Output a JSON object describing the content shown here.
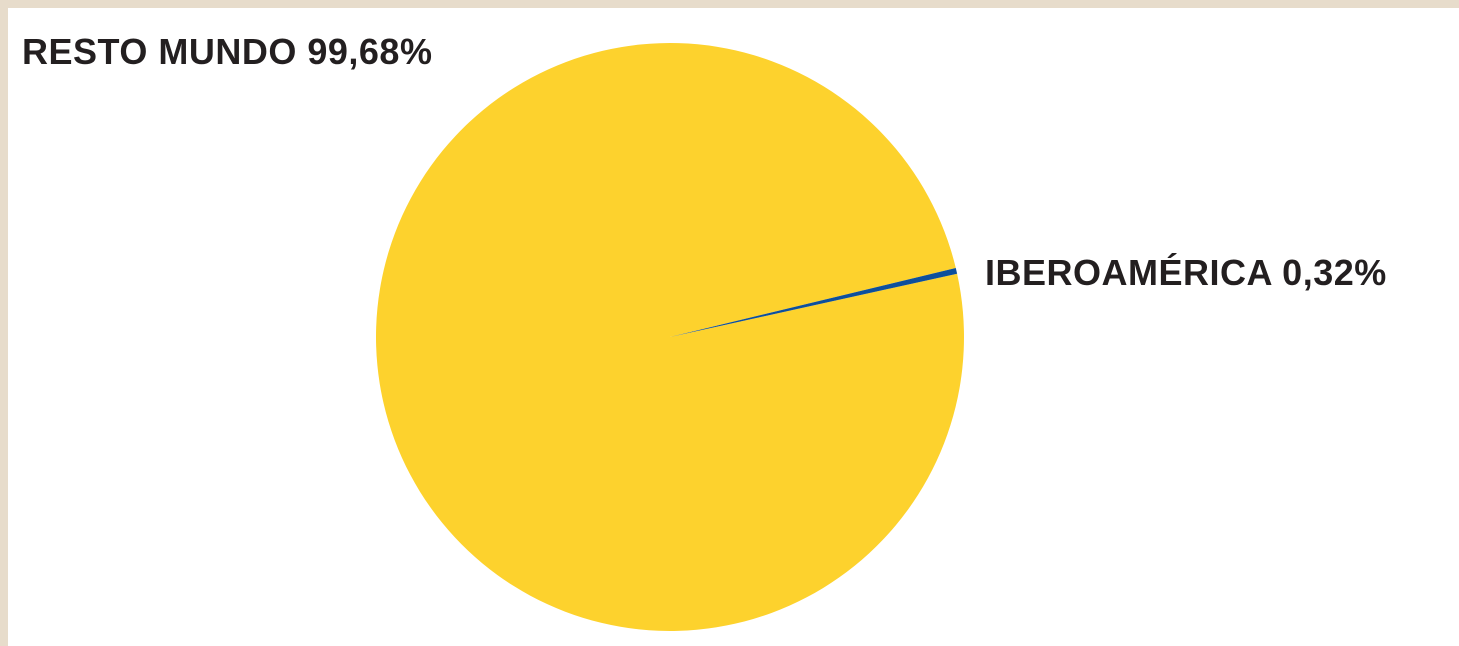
{
  "chart_data": {
    "type": "pie",
    "slices": [
      {
        "name": "RESTO MUNDO",
        "value": 99.68,
        "label": "RESTO MUNDO 99,68%",
        "color": "#fdd22d"
      },
      {
        "name": "IBEROAMÉRICA",
        "value": 0.32,
        "label": "IBEROAMÉRICA 0,32%",
        "color": "#0d4f9c"
      }
    ],
    "units": "%",
    "title": "",
    "start_angle_deg": -13,
    "direction": "clockwise"
  },
  "colors": {
    "frame": "#e7dccb",
    "panel": "#ffffff",
    "text": "#231f20"
  }
}
